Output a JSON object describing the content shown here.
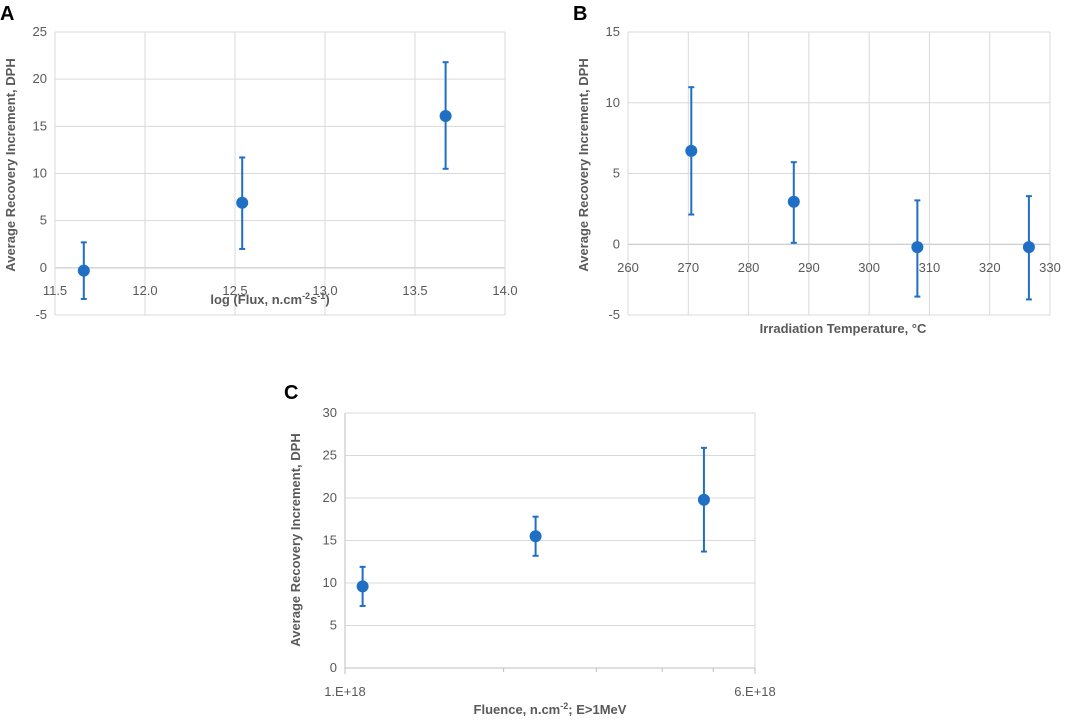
{
  "colors": {
    "series": "#1f6fc5",
    "grid": "#d9d9d9",
    "axis": "#bfbfbf",
    "tick_text": "#595959"
  },
  "chart_data": [
    {
      "panel": "A",
      "type": "scatter",
      "xlabel": "log (Flux, n.cm",
      "xlabel_sup1": "-2",
      "xlabel_mid": "s",
      "xlabel_sup2": "-1",
      "xlabel_end": ")",
      "ylabel": "Average Recovery Increment, DPH",
      "xlim": [
        11.5,
        14.0
      ],
      "ylim": [
        -5,
        25
      ],
      "x_ticks": [
        "11.5",
        "12.0",
        "12.5",
        "13.0",
        "13.5",
        "14.0"
      ],
      "y_ticks": [
        "-5",
        "0",
        "5",
        "10",
        "15",
        "20",
        "25"
      ],
      "points": [
        {
          "x": 11.66,
          "y": -0.3,
          "err_low": -3.3,
          "err_high": 2.7
        },
        {
          "x": 12.54,
          "y": 6.9,
          "err_low": 2.0,
          "err_high": 11.7
        },
        {
          "x": 13.67,
          "y": 16.1,
          "err_low": 10.5,
          "err_high": 21.8
        }
      ]
    },
    {
      "panel": "B",
      "type": "scatter",
      "xlabel": "Irradiation Temperature, °C",
      "ylabel": "Average Recovery Increment, DPH",
      "xlim": [
        260,
        330
      ],
      "ylim": [
        -5,
        15
      ],
      "x_ticks": [
        "260",
        "270",
        "280",
        "290",
        "300",
        "310",
        "320",
        "330"
      ],
      "y_ticks": [
        "-5",
        "0",
        "5",
        "10",
        "15"
      ],
      "points": [
        {
          "x": 270.5,
          "y": 6.6,
          "err_low": 2.1,
          "err_high": 11.1
        },
        {
          "x": 287.5,
          "y": 3.0,
          "err_low": 0.1,
          "err_high": 5.8
        },
        {
          "x": 308.0,
          "y": -0.2,
          "err_low": -3.7,
          "err_high": 3.1
        },
        {
          "x": 326.5,
          "y": -0.2,
          "err_low": -3.9,
          "err_high": 3.4
        }
      ]
    },
    {
      "panel": "C",
      "type": "scatter",
      "xlabel": "Fluence, n.cm",
      "xlabel_sup1": "-2",
      "xlabel_end": "; E>1MeV",
      "ylabel": "Average Recovery Increment, DPH",
      "xscale": "log",
      "xlim": [
        1e+18,
        6e+18
      ],
      "ylim": [
        0,
        30
      ],
      "x_ticks": [
        "1.E+18",
        "6.E+18"
      ],
      "y_ticks": [
        "0",
        "5",
        "10",
        "15",
        "20",
        "25",
        "30"
      ],
      "points": [
        {
          "x": 1.08e+18,
          "y": 9.6,
          "err_low": 7.3,
          "err_high": 11.9
        },
        {
          "x": 2.3e+18,
          "y": 15.5,
          "err_low": 13.2,
          "err_high": 17.8
        },
        {
          "x": 4.8e+18,
          "y": 19.8,
          "err_low": 13.7,
          "err_high": 25.9
        }
      ]
    }
  ]
}
